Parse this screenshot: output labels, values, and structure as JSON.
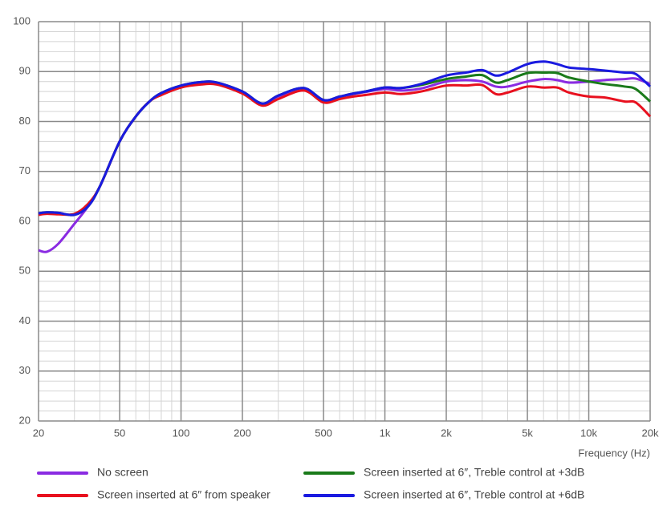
{
  "chart_data": {
    "type": "line",
    "x_label": "Frequency (Hz)",
    "x_scale": "log",
    "grid": true,
    "xlim": [
      20,
      20000
    ],
    "ylim": [
      20,
      100
    ],
    "xticks": [
      20,
      50,
      100,
      200,
      500,
      {
        "value": 1000,
        "label": "1k"
      },
      {
        "value": 2000,
        "label": "2k"
      },
      {
        "value": 5000,
        "label": "5k"
      },
      {
        "value": 10000,
        "label": "10k"
      },
      {
        "value": 20000,
        "label": "20k"
      }
    ],
    "yticks": [
      20,
      30,
      40,
      50,
      60,
      70,
      80,
      90,
      100
    ],
    "x_minor_ticks": [
      30,
      40,
      60,
      70,
      80,
      90,
      300,
      400,
      600,
      700,
      800,
      900,
      3000,
      4000,
      6000,
      7000,
      8000,
      9000
    ],
    "y_minor_ticks": [
      22,
      24,
      26,
      28,
      32,
      34,
      36,
      38,
      42,
      44,
      46,
      48,
      52,
      54,
      56,
      58,
      62,
      64,
      66,
      68,
      72,
      74,
      76,
      78,
      82,
      84,
      86,
      88,
      92,
      94,
      96,
      98
    ],
    "x": [
      20,
      22,
      25,
      30,
      35,
      40,
      50,
      60,
      70,
      80,
      100,
      125,
      150,
      200,
      250,
      300,
      400,
      500,
      600,
      700,
      800,
      1000,
      1200,
      1500,
      2000,
      2500,
      3000,
      3500,
      4000,
      5000,
      6000,
      7000,
      8000,
      10000,
      12000,
      15000,
      17000,
      20000
    ],
    "series": [
      {
        "name": "No screen",
        "color": "#8a2be2",
        "values": [
          54.2,
          53.9,
          55.5,
          59.5,
          63,
          67,
          76,
          81,
          84,
          85.5,
          87,
          87.7,
          87.6,
          86,
          83.5,
          85,
          86.5,
          84.2,
          84.8,
          85.5,
          85.9,
          86.5,
          86.2,
          86.6,
          88,
          88.3,
          88,
          87,
          87,
          88,
          88.5,
          88.3,
          87.8,
          88,
          88.3,
          88.5,
          88.6,
          87.5
        ]
      },
      {
        "name": "Screen inserted at 6″ from speaker",
        "color": "#e8101e",
        "values": [
          61.3,
          61.5,
          61.4,
          61.5,
          63.5,
          67,
          76,
          81,
          84,
          85.3,
          86.8,
          87.4,
          87.4,
          85.6,
          83.2,
          84.5,
          86.2,
          83.8,
          84.5,
          85,
          85.3,
          85.8,
          85.5,
          86,
          87.2,
          87.2,
          87.3,
          85.5,
          85.8,
          87,
          86.8,
          86.8,
          85.8,
          85,
          84.8,
          84,
          83.8,
          81
        ]
      },
      {
        "name": "Screen inserted at 6″, Treble control at +3dB",
        "color": "#1a7a1a",
        "values": [
          61.6,
          61.8,
          61.7,
          61.3,
          63,
          67,
          76,
          81,
          84,
          85.7,
          87.2,
          87.9,
          87.8,
          86,
          83.6,
          85.2,
          86.7,
          84.3,
          85,
          85.6,
          86,
          86.8,
          86.7,
          87.3,
          88.5,
          89,
          89.3,
          87.8,
          88.3,
          89.7,
          89.8,
          89.7,
          88.8,
          88,
          87.5,
          87,
          86.5,
          84
        ]
      },
      {
        "name": "Screen inserted at 6″, Treble control at +6dB",
        "color": "#1a1ae0",
        "values": [
          61.6,
          61.8,
          61.7,
          61.3,
          63,
          67,
          76,
          81,
          84,
          85.7,
          87.2,
          87.9,
          87.8,
          86,
          83.6,
          85.2,
          86.7,
          84.3,
          85,
          85.6,
          86,
          86.8,
          86.7,
          87.5,
          89.2,
          89.8,
          90.3,
          89.2,
          89.8,
          91.5,
          92,
          91.5,
          90.8,
          90.5,
          90.2,
          89.8,
          89.5,
          87
        ]
      }
    ]
  }
}
